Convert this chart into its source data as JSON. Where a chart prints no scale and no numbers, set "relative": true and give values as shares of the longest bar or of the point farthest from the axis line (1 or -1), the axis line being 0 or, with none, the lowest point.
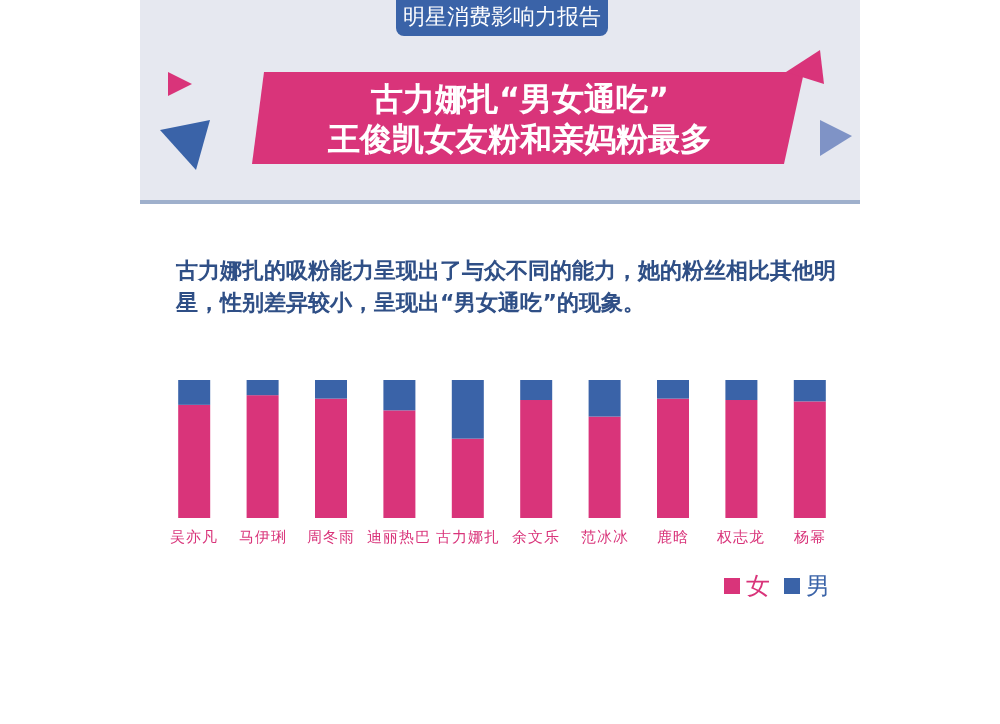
{
  "chart_data": {
    "type": "bar",
    "stacked": true,
    "relative": true,
    "subtitle": "明星消费影响力报告",
    "title": "古力娜扎“男女通吃”\n王俊凯女友粉和亲妈粉最多",
    "annotations": [
      "古力娜扎的吸粉能力呈现出了与众不同的能力，她的粉丝相比其他明星，性别差异较小，呈现出“男女通吃”的现象。"
    ],
    "categories": [
      "吴亦凡",
      "马伊琍",
      "周冬雨",
      "迪丽热巴",
      "古力娜扎",
      "余文乐",
      "范冰冰",
      "鹿晗",
      "权志龙",
      "杨幂"
    ],
    "series": [
      {
        "name": "女",
        "color": "#d9347a",
        "values": [
          0.82,
          0.89,
          0.865,
          0.78,
          0.575,
          0.855,
          0.735,
          0.865,
          0.855,
          0.845
        ]
      },
      {
        "name": "男",
        "color": "#3a63a8",
        "values": [
          0.18,
          0.11,
          0.135,
          0.22,
          0.425,
          0.145,
          0.265,
          0.135,
          0.145,
          0.155
        ]
      }
    ],
    "legend": "bottom right",
    "grid": false
  }
}
